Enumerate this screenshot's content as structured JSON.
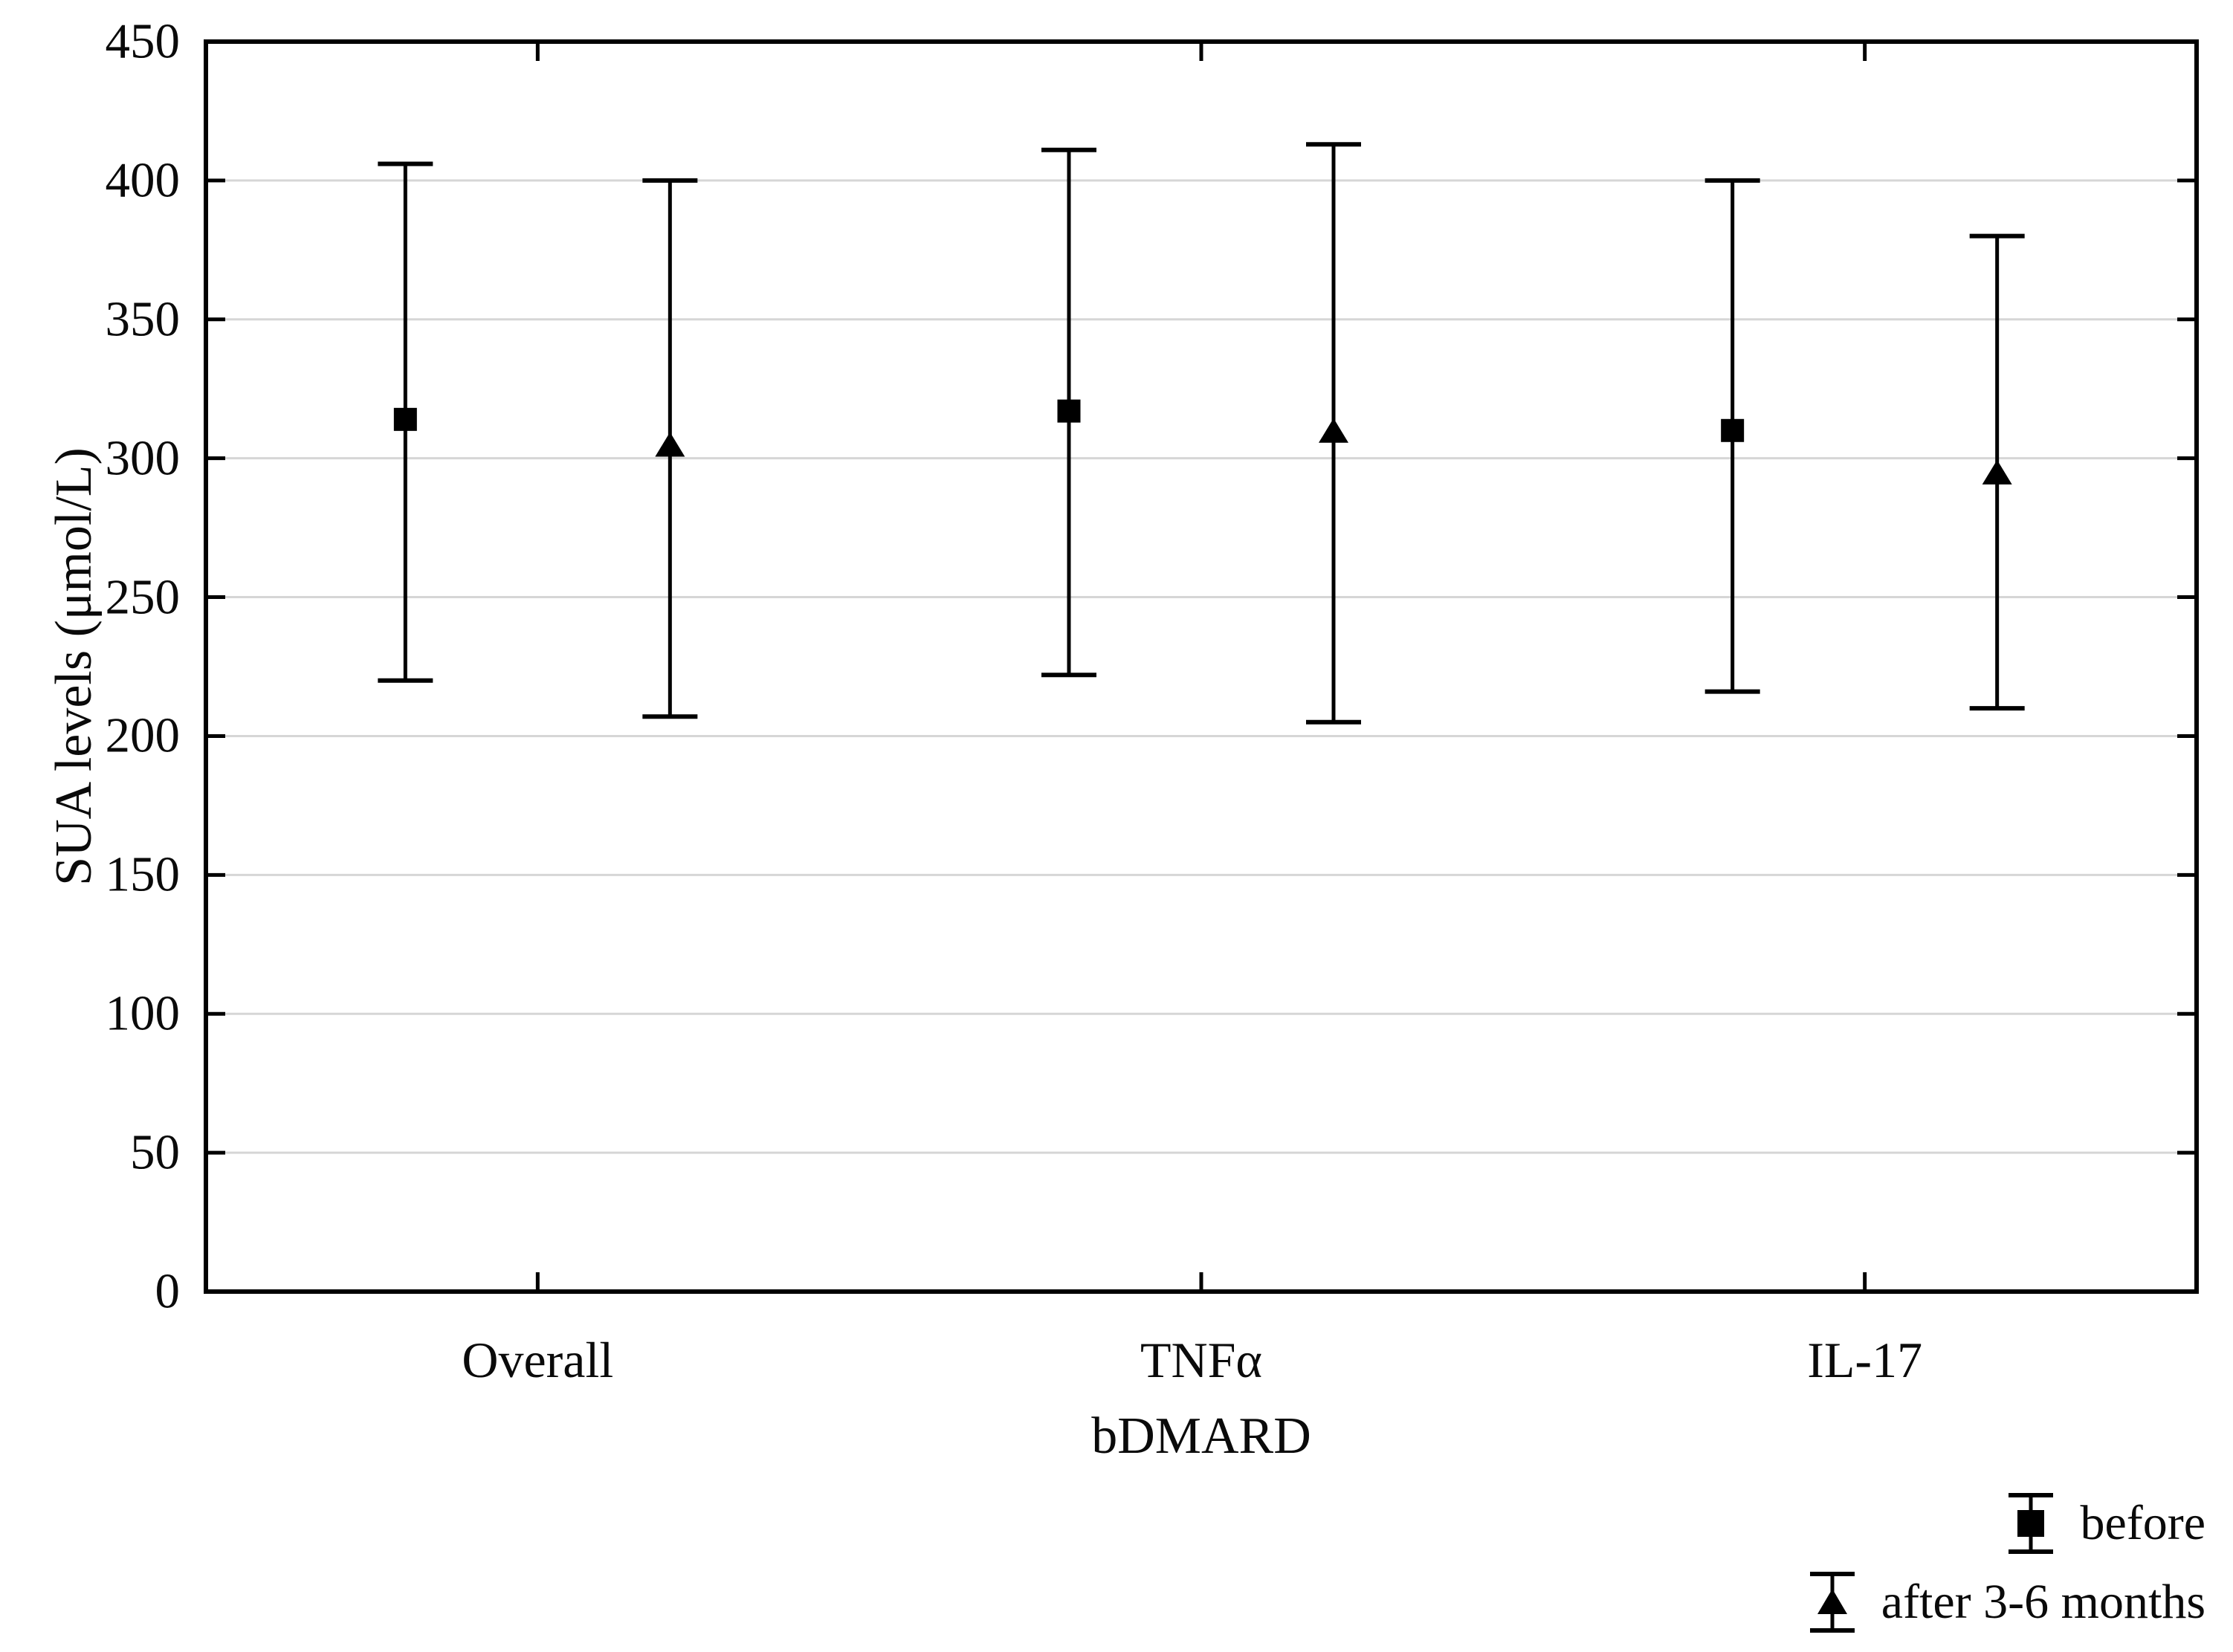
{
  "chart_data": {
    "type": "scatter",
    "subtype": "mean-with-error-bars",
    "title": "",
    "xlabel": "bDMARD",
    "ylabel": "SUA levels (μmol/L)",
    "categories": [
      "Overall",
      "TNFα",
      "IL-17"
    ],
    "ylim": [
      0,
      450
    ],
    "yticks": [
      450,
      400,
      350,
      300,
      250,
      200,
      150,
      100,
      50,
      0
    ],
    "grid": "horizontal gridlines every 50, light gray",
    "gridline_color": "#d6d6d6",
    "axis_color": "#000000",
    "marker_color": "#000000",
    "background_color": "#ffffff",
    "legend_position": "below plot, bottom-right",
    "series": [
      {
        "name": "before",
        "marker": "filled-square",
        "points": [
          {
            "category": "Overall",
            "mean": 314,
            "lo": 220,
            "hi": 406
          },
          {
            "category": "TNFα",
            "mean": 317,
            "lo": 222,
            "hi": 411
          },
          {
            "category": "IL-17",
            "mean": 310,
            "lo": 216,
            "hi": 400
          }
        ]
      },
      {
        "name": "after 3-6 months",
        "marker": "filled-triangle",
        "points": [
          {
            "category": "Overall",
            "mean": 305,
            "lo": 207,
            "hi": 400
          },
          {
            "category": "TNFα",
            "mean": 310,
            "lo": 205,
            "hi": 413
          },
          {
            "category": "IL-17",
            "mean": 295,
            "lo": 210,
            "hi": 380
          }
        ]
      }
    ]
  }
}
